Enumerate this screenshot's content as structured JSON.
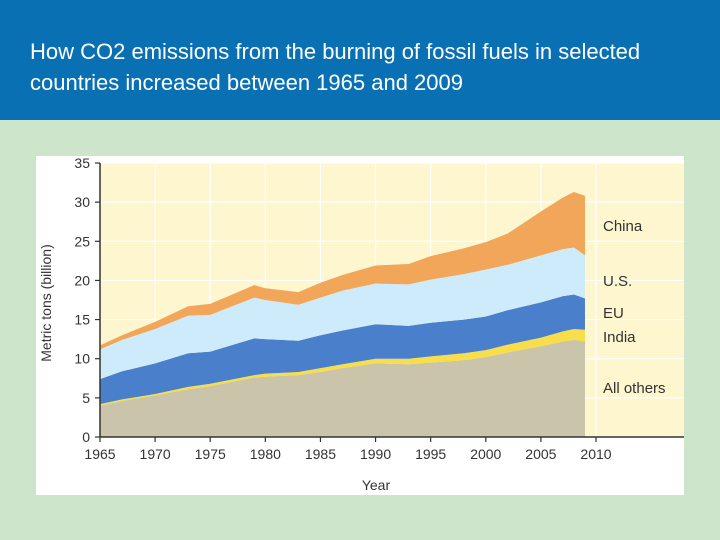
{
  "title": "How CO2 emissions from the burning of fossil fuels in selected countries increased between 1965 and 2009",
  "colors": {
    "header": "#0a70b4",
    "slide_background": "#cde6cb",
    "plot_background": "#fdf6cf",
    "china": "#f2a65a",
    "us": "#cdebfb",
    "eu": "#4a7fcb",
    "india": "#f8de4a",
    "all_others": "#c9c4aa"
  },
  "chart_data": {
    "type": "area",
    "stacked": true,
    "xlabel": "Year",
    "ylabel": "Metric tons (billion)",
    "xlim": [
      1965,
      2010
    ],
    "ylim": [
      0,
      35
    ],
    "x_ticks": [
      1965,
      1970,
      1975,
      1980,
      1985,
      1990,
      1995,
      2000,
      2005,
      2010
    ],
    "y_ticks": [
      0,
      5,
      10,
      15,
      20,
      25,
      30,
      35
    ],
    "grid": true,
    "legend_placement": "right",
    "x": [
      1965,
      1967,
      1970,
      1973,
      1975,
      1979,
      1980,
      1983,
      1985,
      1987,
      1990,
      1993,
      1995,
      1998,
      2000,
      2002,
      2005,
      2007,
      2008,
      2009
    ],
    "series": [
      {
        "name": "All others",
        "color_key": "all_others",
        "values": [
          4.0,
          4.6,
          5.3,
          6.1,
          6.5,
          7.6,
          7.7,
          7.9,
          8.3,
          8.8,
          9.4,
          9.3,
          9.5,
          9.8,
          10.2,
          10.8,
          11.6,
          12.2,
          12.4,
          12.2
        ]
      },
      {
        "name": "India",
        "color_key": "india",
        "values": [
          0.2,
          0.2,
          0.2,
          0.3,
          0.3,
          0.3,
          0.4,
          0.4,
          0.5,
          0.5,
          0.6,
          0.7,
          0.8,
          0.9,
          0.9,
          1.0,
          1.1,
          1.3,
          1.4,
          1.5
        ]
      },
      {
        "name": "EU",
        "color_key": "eu",
        "values": [
          3.2,
          3.6,
          3.9,
          4.3,
          4.1,
          4.7,
          4.4,
          4.0,
          4.2,
          4.3,
          4.4,
          4.2,
          4.3,
          4.3,
          4.3,
          4.4,
          4.5,
          4.5,
          4.4,
          4.0
        ]
      },
      {
        "name": "U.S.",
        "color_key": "us",
        "values": [
          3.8,
          4.0,
          4.4,
          4.8,
          4.7,
          5.2,
          5.0,
          4.6,
          4.8,
          5.1,
          5.2,
          5.3,
          5.5,
          5.8,
          6.0,
          5.8,
          6.0,
          6.0,
          6.0,
          5.5
        ]
      },
      {
        "name": "China",
        "color_key": "china",
        "values": [
          0.5,
          0.6,
          0.9,
          1.2,
          1.4,
          1.6,
          1.5,
          1.6,
          1.9,
          2.0,
          2.3,
          2.6,
          3.0,
          3.3,
          3.5,
          4.0,
          5.6,
          6.6,
          7.1,
          7.6
        ]
      }
    ]
  }
}
